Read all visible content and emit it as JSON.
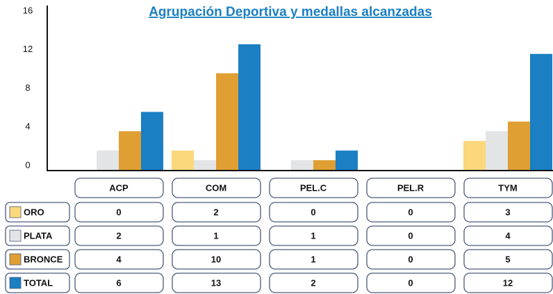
{
  "chart_data": {
    "type": "bar",
    "title": "Agrupación Deportiva y medallas alcanzadas",
    "categories": [
      "ACP",
      "COM",
      "PEL.C",
      "PEL.R",
      "TYM"
    ],
    "series": [
      {
        "name": "ORO",
        "color": "#fcd87c",
        "values": [
          0,
          2,
          0,
          0,
          3
        ]
      },
      {
        "name": "PLATA",
        "color": "#e3e4e6",
        "values": [
          2,
          1,
          1,
          0,
          4
        ]
      },
      {
        "name": "BRONCE",
        "color": "#e09f33",
        "values": [
          4,
          10,
          1,
          0,
          5
        ]
      },
      {
        "name": "TOTAL",
        "color": "#1a7fc3",
        "values": [
          6,
          13,
          2,
          0,
          12
        ]
      }
    ],
    "ylim": [
      0,
      16
    ],
    "yticks": [
      0,
      4,
      8,
      12,
      16
    ],
    "grid": false
  }
}
